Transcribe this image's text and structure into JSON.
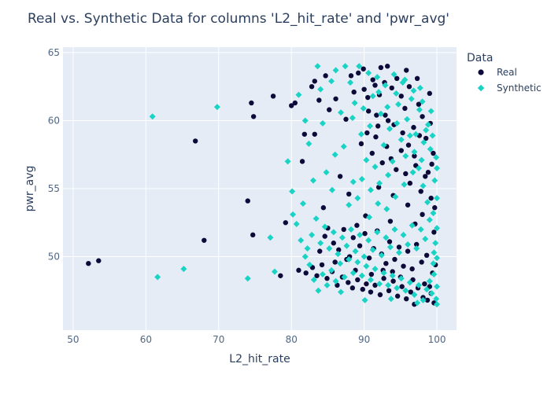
{
  "chart_data": {
    "type": "scatter",
    "title": "Real vs. Synthetic Data for columns 'L2_hit_rate' and 'pwr_avg'",
    "xlabel": "L2_hit_rate",
    "ylabel": "pwr_avg",
    "xlim": [
      48.6,
      102.7
    ],
    "ylim": [
      44.6,
      65.4
    ],
    "xticks": [
      50,
      60,
      70,
      80,
      90,
      100
    ],
    "yticks": [
      50,
      55,
      60,
      65
    ],
    "grid": true,
    "legend": {
      "title": "Data",
      "placement": "right"
    },
    "series": [
      {
        "name": "Real",
        "color": "#0d0a3a",
        "marker": "circle",
        "points": [
          [
            52.1,
            49.5
          ],
          [
            53.5,
            49.7
          ],
          [
            66.8,
            58.5
          ],
          [
            68.0,
            51.2
          ],
          [
            74.0,
            54.1
          ],
          [
            74.5,
            61.3
          ],
          [
            74.8,
            60.3
          ],
          [
            74.7,
            51.6
          ],
          [
            77.5,
            61.8
          ],
          [
            78.5,
            48.6
          ],
          [
            79.2,
            52.5
          ],
          [
            80.0,
            61.1
          ],
          [
            80.5,
            61.3
          ],
          [
            81.5,
            57.0
          ],
          [
            81.8,
            59.0
          ],
          [
            82.8,
            62.5
          ],
          [
            83.2,
            62.9
          ],
          [
            83.2,
            59.0
          ],
          [
            83.8,
            61.5
          ],
          [
            84.7,
            63.3
          ],
          [
            85.2,
            60.8
          ],
          [
            86.1,
            61.6
          ],
          [
            86.7,
            55.9
          ],
          [
            87.5,
            60.1
          ],
          [
            88.2,
            63.3
          ],
          [
            88.6,
            62.1
          ],
          [
            89.2,
            63.5
          ],
          [
            90.0,
            62.3
          ],
          [
            90.5,
            61.7
          ],
          [
            91.2,
            63.0
          ],
          [
            91.5,
            62.6
          ],
          [
            92.1,
            61.9
          ],
          [
            92.8,
            62.8
          ],
          [
            93.3,
            60.0
          ],
          [
            93.8,
            62.4
          ],
          [
            94.5,
            63.1
          ],
          [
            95.1,
            61.8
          ],
          [
            95.6,
            60.9
          ],
          [
            96.2,
            62.5
          ],
          [
            96.8,
            59.5
          ],
          [
            97.5,
            61.2
          ],
          [
            98.0,
            60.3
          ],
          [
            98.5,
            58.7
          ],
          [
            99.1,
            59.8
          ],
          [
            99.5,
            57.6
          ],
          [
            89.6,
            58.3
          ],
          [
            90.4,
            59.1
          ],
          [
            91.1,
            57.6
          ],
          [
            91.6,
            58.8
          ],
          [
            92.5,
            56.9
          ],
          [
            93.1,
            58.1
          ],
          [
            93.7,
            57.2
          ],
          [
            94.4,
            56.4
          ],
          [
            95.1,
            57.8
          ],
          [
            95.7,
            56.1
          ],
          [
            96.3,
            55.4
          ],
          [
            97.1,
            56.7
          ],
          [
            97.8,
            54.8
          ],
          [
            98.4,
            55.9
          ],
          [
            99.2,
            54.3
          ],
          [
            99.7,
            53.6
          ],
          [
            92.0,
            55.1
          ],
          [
            94.0,
            54.5
          ],
          [
            96.0,
            53.8
          ],
          [
            98.0,
            53.1
          ],
          [
            90.6,
            60.7
          ],
          [
            91.9,
            59.6
          ],
          [
            92.9,
            60.4
          ],
          [
            94.1,
            59.7
          ],
          [
            95.3,
            59.1
          ],
          [
            96.1,
            58.2
          ],
          [
            96.9,
            57.4
          ],
          [
            97.6,
            58.9
          ],
          [
            98.8,
            56.2
          ],
          [
            99.3,
            56.8
          ],
          [
            85.0,
            52.1
          ],
          [
            85.8,
            51.0
          ],
          [
            86.5,
            50.5
          ],
          [
            87.2,
            52.0
          ],
          [
            88.0,
            50.0
          ],
          [
            88.5,
            51.4
          ],
          [
            89.0,
            52.3
          ],
          [
            89.4,
            50.8
          ],
          [
            90.1,
            51.7
          ],
          [
            90.7,
            49.9
          ],
          [
            91.3,
            50.6
          ],
          [
            91.8,
            51.9
          ],
          [
            92.4,
            50.2
          ],
          [
            93.0,
            49.5
          ],
          [
            93.5,
            51.1
          ],
          [
            94.2,
            49.8
          ],
          [
            94.8,
            50.7
          ],
          [
            95.4,
            49.3
          ],
          [
            96.0,
            50.4
          ],
          [
            96.6,
            49.1
          ],
          [
            97.2,
            50.9
          ],
          [
            97.9,
            49.6
          ],
          [
            98.6,
            50.1
          ],
          [
            99.4,
            48.8
          ],
          [
            99.8,
            49.4
          ],
          [
            81.0,
            49.0
          ],
          [
            82.0,
            48.8
          ],
          [
            82.9,
            49.2
          ],
          [
            83.5,
            48.6
          ],
          [
            84.2,
            49.4
          ],
          [
            84.9,
            48.4
          ],
          [
            85.6,
            48.9
          ],
          [
            86.3,
            47.9
          ],
          [
            87.0,
            48.5
          ],
          [
            87.8,
            48.1
          ],
          [
            88.4,
            47.7
          ],
          [
            89.1,
            48.3
          ],
          [
            89.8,
            47.6
          ],
          [
            90.3,
            48.0
          ],
          [
            90.9,
            47.4
          ],
          [
            91.5,
            47.9
          ],
          [
            92.2,
            47.2
          ],
          [
            92.7,
            48.4
          ],
          [
            93.4,
            47.5
          ],
          [
            94.0,
            48.2
          ],
          [
            94.6,
            47.1
          ],
          [
            95.2,
            47.8
          ],
          [
            95.8,
            46.9
          ],
          [
            96.4,
            47.4
          ],
          [
            96.9,
            46.5
          ],
          [
            97.4,
            47.7
          ],
          [
            98.1,
            47.0
          ],
          [
            98.7,
            46.8
          ],
          [
            99.2,
            47.3
          ],
          [
            99.6,
            46.6
          ],
          [
            83.9,
            50.4
          ],
          [
            84.6,
            51.5
          ],
          [
            86.0,
            49.6
          ],
          [
            87.6,
            49.8
          ],
          [
            88.8,
            49.0
          ],
          [
            91.0,
            48.7
          ],
          [
            92.6,
            49.0
          ],
          [
            93.9,
            48.9
          ],
          [
            95.0,
            48.5
          ],
          [
            96.7,
            48.3
          ],
          [
            98.3,
            48.0
          ],
          [
            99.0,
            47.8
          ],
          [
            90.2,
            53.0
          ],
          [
            93.6,
            52.6
          ],
          [
            97.0,
            52.4
          ],
          [
            99.6,
            51.8
          ],
          [
            84.4,
            53.6
          ],
          [
            87.9,
            54.6
          ],
          [
            99.0,
            62.0
          ],
          [
            97.3,
            63.1
          ],
          [
            92.3,
            63.9
          ],
          [
            93.2,
            64.0
          ],
          [
            95.8,
            63.7
          ],
          [
            89.9,
            63.8
          ],
          [
            91.7,
            60.4
          ]
        ]
      },
      {
        "name": "Synthetic",
        "color": "#19d3c5",
        "marker": "diamond",
        "points": [
          [
            60.9,
            60.3
          ],
          [
            61.6,
            48.5
          ],
          [
            65.2,
            49.1
          ],
          [
            69.8,
            61.0
          ],
          [
            74.0,
            48.4
          ],
          [
            77.1,
            51.4
          ],
          [
            77.7,
            48.9
          ],
          [
            79.5,
            57.0
          ],
          [
            80.1,
            54.8
          ],
          [
            81.0,
            61.9
          ],
          [
            81.9,
            60.0
          ],
          [
            82.4,
            58.3
          ],
          [
            83.6,
            64.0
          ],
          [
            84.0,
            62.3
          ],
          [
            84.3,
            59.8
          ],
          [
            85.5,
            62.9
          ],
          [
            86.1,
            63.7
          ],
          [
            86.8,
            60.6
          ],
          [
            87.4,
            64.0
          ],
          [
            88.1,
            62.8
          ],
          [
            88.7,
            61.3
          ],
          [
            89.3,
            64.0
          ],
          [
            89.9,
            60.9
          ],
          [
            90.6,
            63.5
          ],
          [
            91.2,
            61.8
          ],
          [
            91.8,
            63.2
          ],
          [
            92.3,
            60.5
          ],
          [
            92.9,
            62.6
          ],
          [
            93.5,
            59.4
          ],
          [
            94.1,
            63.4
          ],
          [
            94.7,
            61.2
          ],
          [
            95.3,
            62.8
          ],
          [
            95.9,
            60.1
          ],
          [
            96.5,
            61.6
          ],
          [
            97.1,
            59.0
          ],
          [
            97.6,
            60.8
          ],
          [
            98.2,
            58.4
          ],
          [
            98.8,
            59.7
          ],
          [
            99.4,
            58.9
          ],
          [
            99.9,
            57.3
          ],
          [
            100.0,
            56.5
          ],
          [
            99.7,
            55.6
          ],
          [
            100.0,
            54.3
          ],
          [
            99.5,
            53.2
          ],
          [
            100.0,
            52.1
          ],
          [
            99.8,
            51.0
          ],
          [
            100.0,
            49.9
          ],
          [
            99.6,
            48.7
          ],
          [
            100.0,
            47.8
          ],
          [
            99.9,
            46.9
          ],
          [
            100.0,
            46.5
          ],
          [
            99.3,
            47.3
          ],
          [
            99.0,
            48.2
          ],
          [
            98.6,
            47.6
          ],
          [
            98.1,
            46.8
          ],
          [
            97.5,
            47.9
          ],
          [
            96.9,
            47.2
          ],
          [
            96.3,
            48.1
          ],
          [
            95.7,
            47.5
          ],
          [
            95.1,
            48.4
          ],
          [
            94.5,
            47.7
          ],
          [
            93.9,
            48.6
          ],
          [
            93.3,
            47.9
          ],
          [
            92.7,
            48.8
          ],
          [
            92.1,
            48.0
          ],
          [
            91.5,
            49.1
          ],
          [
            90.9,
            48.3
          ],
          [
            90.3,
            49.3
          ],
          [
            89.7,
            48.6
          ],
          [
            89.1,
            49.6
          ],
          [
            88.5,
            48.8
          ],
          [
            87.9,
            49.8
          ],
          [
            87.3,
            48.5
          ],
          [
            86.7,
            49.5
          ],
          [
            86.1,
            48.2
          ],
          [
            85.5,
            49.0
          ],
          [
            84.9,
            47.9
          ],
          [
            84.3,
            48.7
          ],
          [
            83.7,
            47.5
          ],
          [
            83.1,
            48.3
          ],
          [
            82.5,
            49.4
          ],
          [
            81.9,
            50.0
          ],
          [
            81.3,
            51.2
          ],
          [
            80.7,
            52.4
          ],
          [
            80.2,
            53.1
          ],
          [
            82.8,
            51.6
          ],
          [
            83.4,
            52.8
          ],
          [
            84.0,
            51.0
          ],
          [
            84.6,
            52.2
          ],
          [
            85.2,
            50.6
          ],
          [
            85.8,
            51.8
          ],
          [
            86.4,
            50.2
          ],
          [
            87.0,
            51.4
          ],
          [
            87.6,
            50.8
          ],
          [
            88.2,
            52.0
          ],
          [
            88.8,
            50.4
          ],
          [
            89.4,
            51.6
          ],
          [
            90.0,
            50.0
          ],
          [
            90.6,
            51.2
          ],
          [
            91.2,
            50.5
          ],
          [
            91.8,
            51.8
          ],
          [
            92.4,
            50.1
          ],
          [
            93.0,
            51.4
          ],
          [
            93.6,
            50.7
          ],
          [
            94.2,
            52.0
          ],
          [
            94.8,
            50.3
          ],
          [
            95.4,
            51.6
          ],
          [
            96.0,
            50.9
          ],
          [
            96.6,
            52.3
          ],
          [
            97.2,
            50.6
          ],
          [
            97.8,
            52.0
          ],
          [
            98.4,
            51.3
          ],
          [
            99.0,
            52.7
          ],
          [
            99.6,
            50.3
          ],
          [
            98.7,
            54.0
          ],
          [
            98.1,
            55.2
          ],
          [
            97.5,
            56.5
          ],
          [
            96.9,
            57.7
          ],
          [
            96.3,
            58.9
          ],
          [
            95.7,
            57.4
          ],
          [
            95.1,
            58.6
          ],
          [
            94.5,
            59.8
          ],
          [
            93.9,
            57.0
          ],
          [
            93.3,
            56.0
          ],
          [
            92.7,
            58.2
          ],
          [
            92.1,
            55.4
          ],
          [
            91.5,
            56.6
          ],
          [
            90.9,
            54.9
          ],
          [
            90.3,
            57.1
          ],
          [
            89.7,
            55.7
          ],
          [
            89.1,
            54.3
          ],
          [
            88.5,
            55.5
          ],
          [
            87.9,
            53.8
          ],
          [
            97.9,
            57.1
          ],
          [
            96.7,
            56.2
          ],
          [
            95.5,
            55.3
          ],
          [
            94.3,
            54.4
          ],
          [
            93.1,
            53.5
          ],
          [
            91.9,
            53.9
          ],
          [
            90.7,
            52.9
          ],
          [
            99.2,
            60.7
          ],
          [
            98.0,
            61.4
          ],
          [
            96.8,
            62.2
          ],
          [
            95.6,
            63.0
          ],
          [
            94.4,
            62.0
          ],
          [
            93.2,
            61.0
          ],
          [
            92.0,
            62.1
          ],
          [
            90.8,
            59.6
          ],
          [
            89.6,
            59.0
          ],
          [
            88.4,
            60.2
          ],
          [
            87.2,
            58.1
          ],
          [
            86.0,
            57.5
          ],
          [
            85.6,
            54.9
          ],
          [
            84.8,
            56.2
          ],
          [
            83.0,
            55.6
          ],
          [
            81.6,
            53.9
          ],
          [
            82.2,
            50.6
          ],
          [
            86.8,
            47.4
          ],
          [
            90.1,
            46.8
          ],
          [
            93.7,
            46.9
          ],
          [
            97.3,
            46.6
          ],
          [
            99.5,
            49.5
          ],
          [
            99.1,
            57.9
          ],
          [
            98.5,
            59.3
          ],
          [
            97.7,
            62.4
          ]
        ]
      }
    ]
  }
}
